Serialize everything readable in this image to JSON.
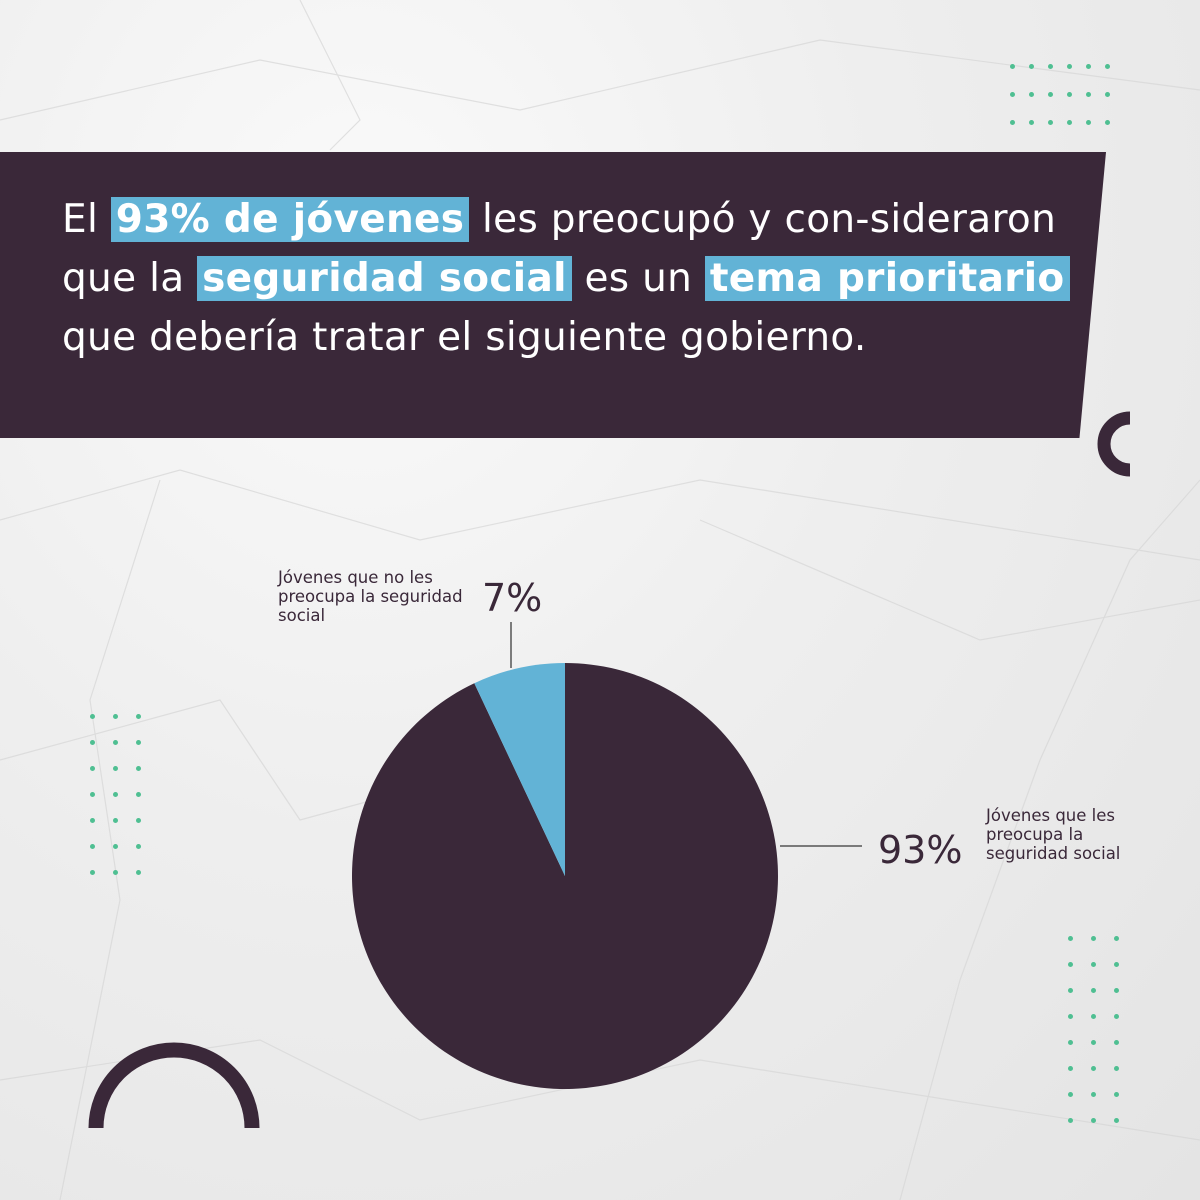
{
  "headline": {
    "before_1": "El ",
    "highlight_1": "93% de jóvenes",
    "between_1_2": " les preocupó y con-sideraron que la ",
    "highlight_2": "seguridad social",
    "between_2_3": " es un ",
    "highlight_3": "tema prioritario",
    "after_3": " que debería tratar el siguiente gobierno."
  },
  "colors": {
    "dark": "#3a2839",
    "accent": "#62b3d6",
    "dots": "#4fbf92",
    "text_light": "#ffffff"
  },
  "chart_data": {
    "type": "pie",
    "title": "",
    "categories": [
      "Jóvenes que les preocupa la seguridad social",
      "Jóvenes que no les preocupa la seguridad social"
    ],
    "values": [
      93,
      7
    ],
    "value_labels": [
      "93%",
      "7%"
    ],
    "slice_colors": [
      "#3a2839",
      "#62b3d6"
    ],
    "start_angle_deg": 0,
    "direction": "clockwise-from-top",
    "legend": "none (direct labels)"
  },
  "labels": {
    "small_slice_text": "Jóvenes que no les preocupa la seguridad social",
    "small_slice_pct": "7%",
    "big_slice_text": "Jóvenes que les preocupa la seguridad social",
    "big_slice_pct": "93%"
  }
}
